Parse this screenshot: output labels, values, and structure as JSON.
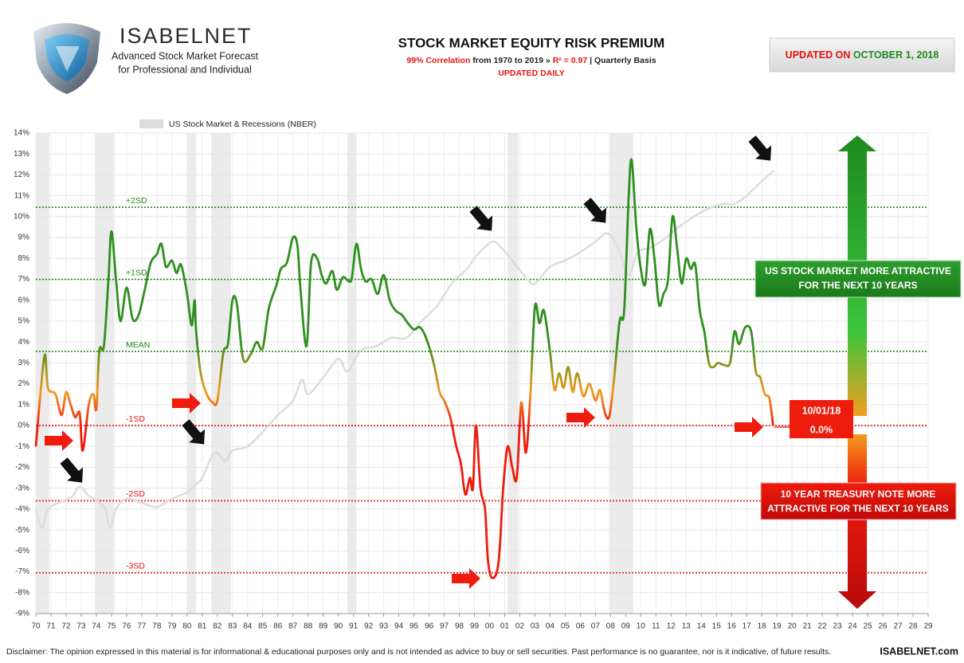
{
  "header": {
    "brand": "ISABELNET",
    "tagline": [
      "Advanced Stock Market Forecast",
      "for Professional and Individual"
    ],
    "updated_on": [
      "UPDATED ON",
      "OCTOBER 1, 2018"
    ]
  },
  "chart_data": {
    "type": "line",
    "title": "STOCK MARKET EQUITY RISK PREMIUM",
    "subtitle": [
      "99% Correlation",
      "from 1970 to 2019 »",
      "R² = 0.97",
      "| Quarterly Basis"
    ],
    "note": "UPDATED  DAILY",
    "xlim": [
      1970,
      2029
    ],
    "xticks": [
      {
        "value": 1970,
        "label": "70"
      },
      {
        "value": 1971,
        "label": "71"
      },
      {
        "value": 1972,
        "label": "72"
      },
      {
        "value": 1973,
        "label": "73"
      },
      {
        "value": 1974,
        "label": "74"
      },
      {
        "value": 1975,
        "label": "75"
      },
      {
        "value": 1976,
        "label": "76"
      },
      {
        "value": 1977,
        "label": "77"
      },
      {
        "value": 1978,
        "label": "78"
      },
      {
        "value": 1979,
        "label": "79"
      },
      {
        "value": 1980,
        "label": "80"
      },
      {
        "value": 1981,
        "label": "81"
      },
      {
        "value": 1982,
        "label": "82"
      },
      {
        "value": 1983,
        "label": "83"
      },
      {
        "value": 1984,
        "label": "84"
      },
      {
        "value": 1985,
        "label": "85"
      },
      {
        "value": 1986,
        "label": "86"
      },
      {
        "value": 1987,
        "label": "87"
      },
      {
        "value": 1988,
        "label": "88"
      },
      {
        "value": 1989,
        "label": "89"
      },
      {
        "value": 1990,
        "label": "90"
      },
      {
        "value": 1991,
        "label": "91"
      },
      {
        "value": 1992,
        "label": "92"
      },
      {
        "value": 1993,
        "label": "93"
      },
      {
        "value": 1994,
        "label": "94"
      },
      {
        "value": 1995,
        "label": "95"
      },
      {
        "value": 1996,
        "label": "96"
      },
      {
        "value": 1997,
        "label": "97"
      },
      {
        "value": 1998,
        "label": "98"
      },
      {
        "value": 1999,
        "label": "99"
      },
      {
        "value": 2000,
        "label": "00"
      },
      {
        "value": 2001,
        "label": "01"
      },
      {
        "value": 2002,
        "label": "02"
      },
      {
        "value": 2003,
        "label": "03"
      },
      {
        "value": 2004,
        "label": "04"
      },
      {
        "value": 2005,
        "label": "05"
      },
      {
        "value": 2006,
        "label": "06"
      },
      {
        "value": 2007,
        "label": "07"
      },
      {
        "value": 2008,
        "label": "08"
      },
      {
        "value": 2009,
        "label": "09"
      },
      {
        "value": 2010,
        "label": "10"
      },
      {
        "value": 2011,
        "label": "11"
      },
      {
        "value": 2012,
        "label": "12"
      },
      {
        "value": 2013,
        "label": "13"
      },
      {
        "value": 2014,
        "label": "14"
      },
      {
        "value": 2015,
        "label": "15"
      },
      {
        "value": 2016,
        "label": "16"
      },
      {
        "value": 2017,
        "label": "17"
      },
      {
        "value": 2018,
        "label": "18"
      },
      {
        "value": 2019,
        "label": "19"
      },
      {
        "value": 2020,
        "label": "20"
      },
      {
        "value": 2021,
        "label": "21"
      },
      {
        "value": 2022,
        "label": "22"
      },
      {
        "value": 2023,
        "label": "23"
      },
      {
        "value": 2024,
        "label": "24"
      },
      {
        "value": 2025,
        "label": "25"
      },
      {
        "value": 2026,
        "label": "26"
      },
      {
        "value": 2027,
        "label": "27"
      },
      {
        "value": 2028,
        "label": "28"
      },
      {
        "value": 2029,
        "label": "29"
      }
    ],
    "ylim": [
      -9,
      14
    ],
    "yticks": [
      {
        "value": -9,
        "label": "-9%"
      },
      {
        "value": -8,
        "label": "-8%"
      },
      {
        "value": -7,
        "label": "-7%"
      },
      {
        "value": -6,
        "label": "-6%"
      },
      {
        "value": -5,
        "label": "-5%"
      },
      {
        "value": -4,
        "label": "-4%"
      },
      {
        "value": -3,
        "label": "-3%"
      },
      {
        "value": -2,
        "label": "-2%"
      },
      {
        "value": -1,
        "label": "-1%"
      },
      {
        "value": 0,
        "label": "0%"
      },
      {
        "value": 1,
        "label": "1%"
      },
      {
        "value": 2,
        "label": "2%"
      },
      {
        "value": 3,
        "label": "3%"
      },
      {
        "value": 4,
        "label": "4%"
      },
      {
        "value": 5,
        "label": "5%"
      },
      {
        "value": 6,
        "label": "6%"
      },
      {
        "value": 7,
        "label": "7%"
      },
      {
        "value": 8,
        "label": "8%"
      },
      {
        "value": 9,
        "label": "9%"
      },
      {
        "value": 10,
        "label": "10%"
      },
      {
        "value": 11,
        "label": "11%"
      },
      {
        "value": 12,
        "label": "12%"
      },
      {
        "value": 13,
        "label": "13%"
      },
      {
        "value": 14,
        "label": "14%"
      }
    ],
    "grid": true,
    "color_scale": [
      {
        "value": 4,
        "color": "#2f8f1f"
      },
      {
        "value": 1.6,
        "color": "#f39a1e"
      },
      {
        "value": 0,
        "color": "#ee1c0c"
      }
    ],
    "recessions": [
      [
        1970.0,
        1970.9
      ],
      [
        1973.9,
        1975.2
      ],
      [
        1980.0,
        1980.6
      ],
      [
        1981.6,
        1982.9
      ],
      [
        1990.6,
        1991.2
      ],
      [
        2001.2,
        2001.9
      ],
      [
        2007.9,
        2009.5
      ]
    ],
    "recession_color": "#ebebeb",
    "reference_lines": [
      {
        "label": "+2SD",
        "value": 10.45,
        "color": "#1f8a1f"
      },
      {
        "label": "+1SD",
        "value": 7.0,
        "color": "#1f8a1f"
      },
      {
        "label": "MEAN",
        "value": 3.55,
        "color": "#1f8a1f"
      },
      {
        "label": "-1SD",
        "value": 0.0,
        "color": "#e8120c"
      },
      {
        "label": "-2SD",
        "value": -3.6,
        "color": "#e8120c"
      },
      {
        "label": "-3SD",
        "value": -7.05,
        "color": "#e8120c"
      }
    ],
    "series": [
      {
        "color": "gradient",
        "x": [
          1970.0,
          1970.3,
          1970.6,
          1970.8,
          1971.3,
          1971.7,
          1972.0,
          1972.3,
          1972.6,
          1972.9,
          1973.1,
          1973.5,
          1973.8,
          1974.0,
          1974.2,
          1974.5,
          1974.8,
          1975.0,
          1975.3,
          1975.6,
          1976.0,
          1976.4,
          1976.8,
          1977.2,
          1977.6,
          1978.0,
          1978.3,
          1978.6,
          1979.0,
          1979.3,
          1979.6,
          1980.0,
          1980.3,
          1980.5,
          1980.6,
          1980.9,
          1981.3,
          1981.7,
          1982.0,
          1982.4,
          1982.7,
          1983.0,
          1983.3,
          1983.7,
          1984.2,
          1984.6,
          1985.0,
          1985.4,
          1985.9,
          1986.2,
          1986.6,
          1987.0,
          1987.3,
          1987.5,
          1987.9,
          1988.2,
          1988.6,
          1988.9,
          1989.2,
          1989.6,
          1989.9,
          1990.3,
          1990.7,
          1990.9,
          1991.2,
          1991.5,
          1991.8,
          1992.2,
          1992.6,
          1993.0,
          1993.4,
          1993.8,
          1994.2,
          1994.6,
          1995.0,
          1995.4,
          1995.8,
          1996.3,
          1996.7,
          1997.0,
          1997.4,
          1997.8,
          1998.1,
          1998.4,
          1998.7,
          1998.9,
          1999.1,
          1999.4,
          1999.7,
          1999.9,
          2000.2,
          2000.6,
          2000.9,
          2001.2,
          2001.5,
          2001.8,
          2002.1,
          2002.4,
          2002.7,
          2003.0,
          2003.3,
          2003.6,
          2004.0,
          2004.3,
          2004.6,
          2004.9,
          2005.2,
          2005.5,
          2005.8,
          2006.2,
          2006.6,
          2007.0,
          2007.3,
          2007.6,
          2007.9,
          2008.2,
          2008.6,
          2008.9,
          2009.2,
          2009.4,
          2009.7,
          2010.0,
          2010.3,
          2010.6,
          2010.9,
          2011.2,
          2011.5,
          2011.8,
          2012.1,
          2012.4,
          2012.7,
          2013.0,
          2013.3,
          2013.6,
          2013.9,
          2014.2,
          2014.5,
          2014.8,
          2015.1,
          2015.5,
          2015.9,
          2016.2,
          2016.5,
          2016.9,
          2017.3,
          2017.6,
          2017.9,
          2018.2,
          2018.5,
          2018.75
        ],
        "values": [
          -1.0,
          1.5,
          3.4,
          1.8,
          1.5,
          0.5,
          1.6,
          1.0,
          0.4,
          0.6,
          -1.2,
          1.0,
          1.5,
          0.8,
          3.6,
          3.8,
          7.0,
          9.3,
          7.0,
          5.0,
          6.6,
          5.1,
          5.3,
          6.5,
          7.8,
          8.2,
          8.7,
          7.6,
          7.9,
          7.3,
          7.7,
          6.3,
          4.8,
          6.0,
          4.5,
          2.5,
          1.5,
          1.1,
          1.2,
          3.5,
          3.9,
          6.0,
          5.8,
          3.2,
          3.4,
          4.0,
          3.7,
          5.6,
          6.7,
          7.5,
          7.8,
          9.0,
          8.6,
          6.5,
          3.8,
          7.8,
          8.0,
          7.2,
          6.8,
          7.4,
          6.5,
          7.1,
          6.9,
          7.1,
          8.7,
          7.5,
          6.9,
          7.0,
          6.3,
          7.2,
          6.0,
          5.5,
          5.3,
          4.9,
          4.6,
          4.7,
          4.2,
          3.0,
          1.6,
          1.2,
          0.4,
          -1.0,
          -1.8,
          -3.3,
          -2.5,
          -3.0,
          0.0,
          -3.0,
          -4.0,
          -6.5,
          -7.3,
          -6.5,
          -3.0,
          -1.0,
          -2.0,
          -2.5,
          1.1,
          -1.3,
          1.5,
          5.7,
          4.9,
          5.5,
          3.5,
          1.7,
          2.5,
          1.8,
          2.8,
          1.6,
          2.5,
          1.4,
          2.0,
          1.2,
          1.7,
          0.7,
          0.4,
          2.0,
          5.0,
          5.5,
          11.0,
          12.7,
          9.5,
          7.5,
          6.8,
          9.4,
          8.0,
          5.8,
          6.3,
          7.0,
          10.0,
          8.5,
          6.8,
          8.0,
          7.5,
          7.7,
          5.5,
          4.5,
          3.0,
          2.8,
          3.0,
          2.9,
          3.0,
          4.5,
          3.9,
          4.7,
          4.5,
          2.6,
          2.3,
          1.5,
          1.3,
          0.0
        ]
      },
      {
        "name": "US Stock Market & Recessions (NBER)",
        "color": "#dcdcdc",
        "x": [
          1970.0,
          1970.4,
          1970.8,
          1971.5,
          1972.4,
          1972.9,
          1973.4,
          1974.0,
          1974.6,
          1974.9,
          1975.3,
          1976.0,
          1977.0,
          1978.0,
          1979.0,
          1980.0,
          1980.6,
          1981.0,
          1981.8,
          1982.5,
          1983.0,
          1984.0,
          1985.0,
          1986.0,
          1987.0,
          1987.6,
          1988.0,
          1989.0,
          1990.0,
          1990.6,
          1991.5,
          1992.5,
          1993.5,
          1994.5,
          1995.5,
          1996.5,
          1997.5,
          1998.5,
          1999.2,
          2000.2,
          2000.8,
          2001.5,
          2002.5,
          2003.0,
          2004.0,
          2005.0,
          2006.0,
          2007.0,
          2007.8,
          2008.5,
          2009.2,
          2009.8,
          2010.6,
          2011.5,
          2012.5,
          2013.5,
          2014.5,
          2015.5,
          2016.2,
          2017.0,
          2018.0,
          2018.8
        ],
        "values": [
          -4.0,
          -4.9,
          -4.0,
          -3.7,
          -3.4,
          -2.9,
          -3.3,
          -3.6,
          -4.0,
          -4.9,
          -4.0,
          -3.5,
          -3.7,
          -3.9,
          -3.5,
          -3.2,
          -2.8,
          -2.5,
          -1.3,
          -1.7,
          -1.2,
          -1.0,
          -0.3,
          0.5,
          1.2,
          2.2,
          1.5,
          2.3,
          3.2,
          2.6,
          3.6,
          3.8,
          4.2,
          4.2,
          5.0,
          5.7,
          6.8,
          7.5,
          8.2,
          8.8,
          8.5,
          7.9,
          7.0,
          6.8,
          7.6,
          7.9,
          8.3,
          8.8,
          9.2,
          8.5,
          7.2,
          8.3,
          8.5,
          8.9,
          9.5,
          10.0,
          10.4,
          10.6,
          10.6,
          11.0,
          11.7,
          12.2
        ]
      }
    ],
    "last_point": {
      "date": "10/01/18",
      "value_label": "0.0%"
    },
    "zones": {
      "upper": [
        "US STOCK MARKET MORE ATTRACTIVE",
        "FOR THE NEXT 10 YEARS"
      ],
      "lower": [
        "10 YEAR TREASURY NOTE MORE",
        "ATTRACTIVE FOR THE NEXT 10 YEARS"
      ]
    }
  },
  "footer": {
    "disclaimer": "Disclaimer: The opinion expressed in this material is for informational & educational purposes only and is not intended as advice to buy or sell securities. Past performance is no guarantee, nor is it indicative, of future results.",
    "site": "ISABELNET.com"
  }
}
